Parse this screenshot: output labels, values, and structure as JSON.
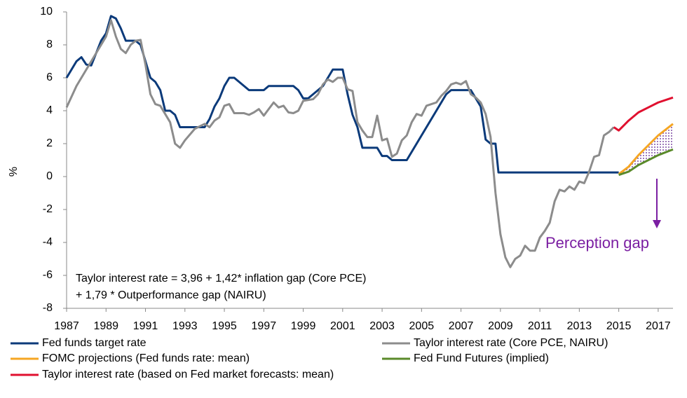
{
  "chart_data": {
    "type": "line",
    "y_label": "%",
    "annotations": [
      "Taylor interest rate = 3,96 + 1,42* inflation gap (Core PCE)",
      "+ 1,79 * Outperformance gap (NAIRU)",
      "Perception gap"
    ],
    "xlim": [
      1987,
      2017.75
    ],
    "xticks": [
      1987,
      1989,
      1991,
      1993,
      1995,
      1997,
      1999,
      2001,
      2003,
      2005,
      2007,
      2009,
      2011,
      2013,
      2015,
      2017
    ],
    "ylim": [
      -8,
      10
    ],
    "yticks": [
      -8,
      -6,
      -4,
      -2,
      0,
      2,
      4,
      6,
      8,
      10
    ],
    "series": [
      {
        "name": "Fed funds target rate",
        "color": "#0b3a7a",
        "x": [
          1987,
          1987.5,
          1987.75,
          1988,
          1988.25,
          1988.5,
          1988.75,
          1989,
          1989.25,
          1989.5,
          1989.75,
          1990,
          1990.5,
          1990.75,
          1991,
          1991.25,
          1991.5,
          1991.75,
          1992,
          1992.25,
          1992.5,
          1992.75,
          1993,
          1994,
          1994.25,
          1994.5,
          1994.75,
          1995,
          1995.25,
          1995.5,
          1995.75,
          1996,
          1996.25,
          1997,
          1997.25,
          1998.5,
          1998.75,
          1999,
          1999.25,
          1999.5,
          1999.75,
          2000,
          2000.25,
          2000.5,
          2001,
          2001.25,
          2001.5,
          2001.75,
          2002,
          2002.75,
          2003,
          2003.25,
          2003.5,
          2004.25,
          2004.5,
          2006.25,
          2006.5,
          2007.5,
          2007.75,
          2008,
          2008.25,
          2008.5,
          2008.75,
          2008.9,
          2015
        ],
        "values": [
          6.0,
          7.0,
          7.25,
          6.8,
          6.75,
          7.5,
          8.25,
          8.7,
          9.75,
          9.6,
          9.0,
          8.25,
          8.25,
          8.0,
          7.0,
          6.0,
          5.75,
          5.25,
          4.0,
          4.0,
          3.75,
          3.0,
          3.0,
          3.0,
          3.5,
          4.25,
          4.75,
          5.5,
          6.0,
          6.0,
          5.75,
          5.5,
          5.25,
          5.25,
          5.5,
          5.5,
          5.25,
          4.75,
          4.75,
          5.0,
          5.25,
          5.5,
          6.0,
          6.5,
          6.5,
          5.0,
          3.75,
          3.0,
          1.75,
          1.75,
          1.25,
          1.25,
          1.0,
          1.0,
          1.5,
          5.0,
          5.25,
          5.25,
          4.75,
          4.25,
          2.25,
          2.0,
          2.0,
          0.25,
          0.25
        ]
      },
      {
        "name": "Taylor interest rate (Core PCE, NAIRU)",
        "color": "#8c8c8c",
        "x": [
          1987,
          1987.5,
          1988,
          1988.5,
          1989,
          1989.25,
          1989.5,
          1989.75,
          1990,
          1990.25,
          1990.5,
          1990.75,
          1991,
          1991.25,
          1991.5,
          1991.75,
          1992,
          1992.25,
          1992.5,
          1992.75,
          1993,
          1993.5,
          1994,
          1994.25,
          1994.5,
          1994.75,
          1995,
          1995.25,
          1995.5,
          1996,
          1996.25,
          1996.5,
          1996.75,
          1997,
          1997.25,
          1997.5,
          1997.75,
          1998,
          1998.25,
          1998.5,
          1998.75,
          1999,
          1999.5,
          1999.75,
          2000,
          2000.25,
          2000.5,
          2000.75,
          2001,
          2001.25,
          2001.5,
          2001.75,
          2002,
          2002.25,
          2002.5,
          2002.75,
          2003,
          2003.25,
          2003.5,
          2003.75,
          2004,
          2004.25,
          2004.5,
          2004.75,
          2005,
          2005.25,
          2005.5,
          2005.75,
          2006,
          2006.25,
          2006.5,
          2006.75,
          2007,
          2007.25,
          2007.5,
          2007.75,
          2008,
          2008.25,
          2008.5,
          2008.75,
          2009,
          2009.25,
          2009.5,
          2009.75,
          2010,
          2010.25,
          2010.5,
          2010.75,
          2011,
          2011.25,
          2011.5,
          2011.75,
          2012,
          2012.25,
          2012.5,
          2012.75,
          2013,
          2013.25,
          2013.5,
          2013.75,
          2014,
          2014.25,
          2014.5,
          2014.75
        ],
        "values": [
          4.2,
          5.5,
          6.5,
          7.5,
          8.5,
          9.5,
          8.5,
          7.75,
          7.5,
          8.0,
          8.25,
          8.3,
          6.8,
          5.0,
          4.4,
          4.3,
          3.8,
          3.3,
          2.0,
          1.75,
          2.2,
          2.9,
          3.2,
          3.0,
          3.4,
          3.6,
          4.3,
          4.4,
          3.85,
          3.85,
          3.75,
          3.9,
          4.1,
          3.7,
          4.1,
          4.5,
          4.2,
          4.3,
          3.9,
          3.85,
          4.0,
          4.6,
          4.7,
          5.0,
          5.6,
          5.9,
          5.75,
          6.0,
          6.0,
          5.3,
          5.2,
          3.3,
          2.8,
          2.4,
          2.4,
          3.7,
          2.2,
          2.3,
          1.2,
          1.4,
          2.2,
          2.5,
          3.3,
          3.8,
          3.7,
          4.3,
          4.4,
          4.5,
          4.9,
          5.2,
          5.6,
          5.7,
          5.6,
          5.8,
          5.0,
          4.8,
          4.5,
          3.8,
          2.4,
          -1.0,
          -3.5,
          -4.9,
          -5.5,
          -5.0,
          -4.8,
          -4.2,
          -4.5,
          -4.5,
          -3.7,
          -3.3,
          -2.8,
          -1.5,
          -0.8,
          -0.9,
          -0.6,
          -0.8,
          -0.3,
          -0.4,
          0.3,
          1.2,
          1.3,
          2.5,
          2.7,
          3.0
        ]
      },
      {
        "name": "FOMC projections (Fed funds rate: mean)",
        "color": "#f5a623",
        "x": [
          2015,
          2015.5,
          2016,
          2016.5,
          2017,
          2017.75
        ],
        "values": [
          0.15,
          0.6,
          1.3,
          1.9,
          2.5,
          3.2
        ]
      },
      {
        "name": "Fed Fund Futures (implied)",
        "color": "#5a8a2a",
        "x": [
          2015,
          2015.5,
          2016,
          2016.5,
          2017,
          2017.75
        ],
        "values": [
          0.1,
          0.3,
          0.7,
          1.0,
          1.3,
          1.65
        ]
      },
      {
        "name": "Taylor interest rate (based on Fed market forecasts: mean)",
        "color": "#e0102f",
        "x": [
          2014.75,
          2015,
          2015.5,
          2016,
          2016.5,
          2017,
          2017.75
        ],
        "values": [
          3.0,
          2.8,
          3.4,
          3.9,
          4.2,
          4.5,
          4.8
        ]
      }
    ]
  }
}
